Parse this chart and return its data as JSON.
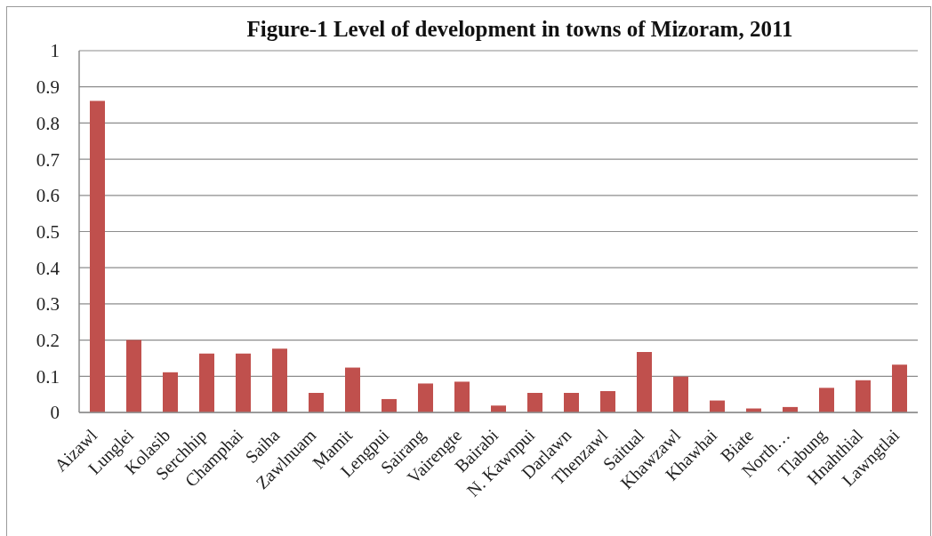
{
  "chart_data": {
    "type": "bar",
    "title": "Figure-1 Level of development in towns of Mizoram, 2011",
    "categories": [
      "Aizawl",
      "Lunglei",
      "Kolasib",
      "Serchhip",
      "Champhai",
      "Saiha",
      "Zawlnuam",
      "Mamit",
      "Lengpui",
      "Sairang",
      "Vairengte",
      "Bairabi",
      "N. Kawnpui",
      "Darlawn",
      "Thenzawl",
      "Saitual",
      "Khawzawl",
      "Khawhai",
      "Biate",
      "North…",
      "Tlabung",
      "Hnahthial",
      "Lawngtlai"
    ],
    "values": [
      0.861,
      0.2,
      0.111,
      0.163,
      0.163,
      0.176,
      0.054,
      0.124,
      0.037,
      0.08,
      0.085,
      0.019,
      0.054,
      0.054,
      0.059,
      0.167,
      0.099,
      0.033,
      0.011,
      0.015,
      0.068,
      0.089,
      0.132
    ],
    "color": "#c0504d",
    "ylim": [
      0,
      1
    ],
    "yticks": [
      0,
      0.1,
      0.2,
      0.3,
      0.4,
      0.5,
      0.6,
      0.7,
      0.8,
      0.9,
      1
    ],
    "grid": "y"
  }
}
